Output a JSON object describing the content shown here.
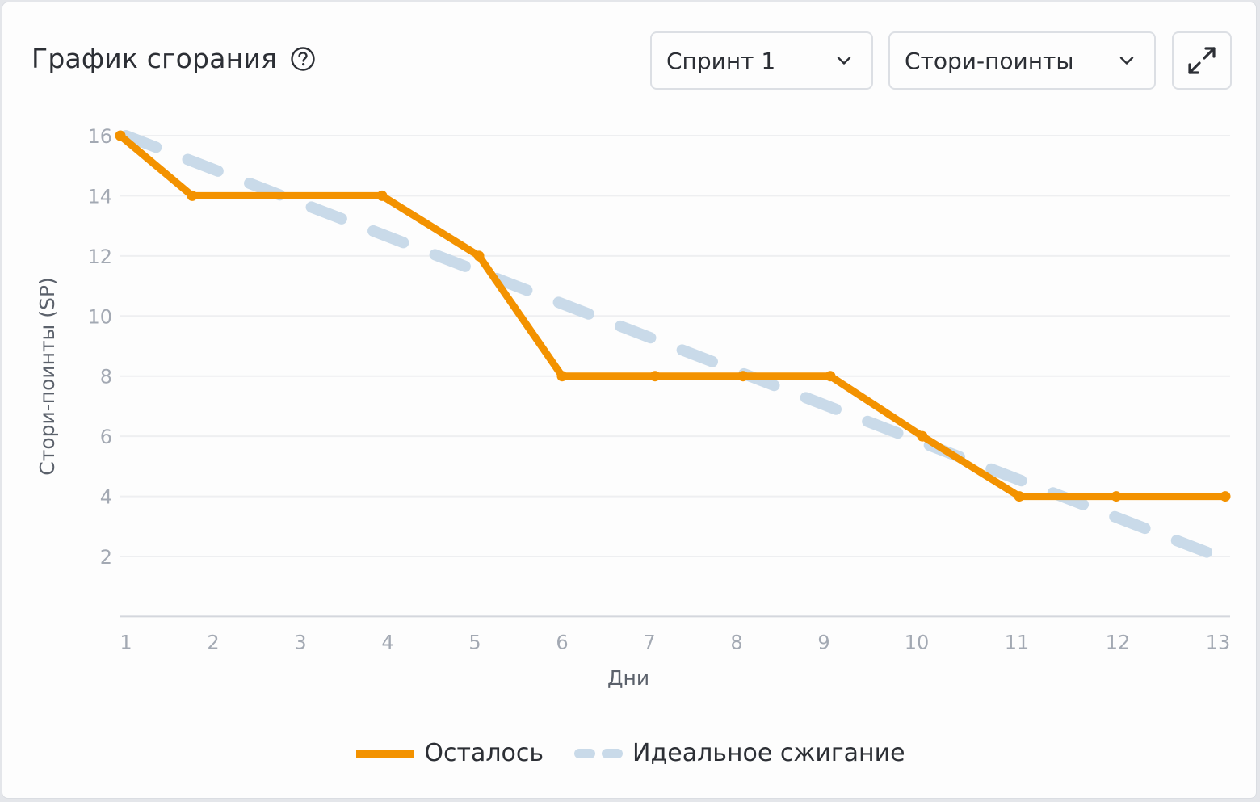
{
  "header": {
    "title": "График сгорания",
    "help_icon": "question-circle-icon",
    "sprint_select": {
      "value": "Спринт 1",
      "icon": "chevron-down-icon"
    },
    "metric_select": {
      "value": "Стори-поинты",
      "icon": "chevron-down-icon"
    },
    "expand_button": {
      "icon": "expand-arrows-icon"
    }
  },
  "legend": {
    "remaining": "Осталось",
    "ideal": "Идеальное сжигание"
  },
  "colors": {
    "remaining": "#f39200",
    "ideal": "#c9dae9",
    "grid": "#eeeff1",
    "axis": "#d4d7dd",
    "tick_label": "#a3a9b3",
    "axis_title": "#5b616b"
  },
  "chart_data": {
    "type": "line",
    "title": "График сгорания",
    "xlabel": "Дни",
    "ylabel": "Стори-поинты (SP)",
    "x": [
      1,
      2,
      3,
      4,
      5,
      6,
      7,
      8,
      9,
      10,
      11,
      12,
      13
    ],
    "x_ticks": [
      "1",
      "2",
      "3",
      "4",
      "5",
      "6",
      "7",
      "8",
      "9",
      "10",
      "11",
      "12",
      "13"
    ],
    "y_ticks": [
      "2",
      "4",
      "6",
      "8",
      "10",
      "12",
      "14",
      "16"
    ],
    "ylim": [
      0,
      16
    ],
    "grid": true,
    "legend_position": "bottom",
    "series": [
      {
        "name": "Осталось",
        "style": "solid",
        "color": "#f39200",
        "x": [
          1,
          1.8,
          4,
          5,
          6,
          7,
          8,
          9,
          10,
          11,
          12,
          13
        ],
        "values": [
          16,
          14,
          14,
          12,
          8,
          8,
          8,
          8,
          6,
          4,
          4,
          4
        ]
      },
      {
        "name": "Идеальное сжигание",
        "style": "dashed",
        "color": "#c9dae9",
        "x": [
          1,
          13
        ],
        "values": [
          16,
          2
        ]
      }
    ]
  }
}
